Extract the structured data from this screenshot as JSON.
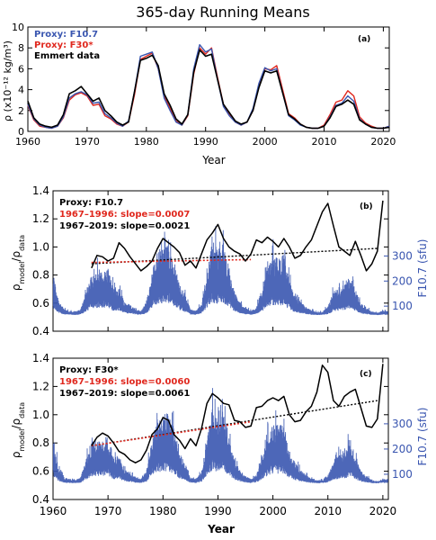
{
  "figure_title": "365-day Running Means",
  "colors": {
    "black": "#000000",
    "red": "#e0281e",
    "blue": "#3a56b0",
    "red_text": "#e0281e",
    "blue_axis": "#3a56b0"
  },
  "chart_data": [
    {
      "id": "a",
      "type": "line",
      "panel_label": "(a)",
      "xlabel": "Year",
      "ylabel": "ρ (x10⁻¹² kg/m³)",
      "xlim": [
        1960,
        2021
      ],
      "ylim": [
        0,
        10
      ],
      "x_ticks": [
        "1960",
        "1970",
        "1980",
        "1990",
        "2000",
        "2010",
        "2020"
      ],
      "y_ticks": [
        "0",
        "2",
        "4",
        "6",
        "8",
        "10"
      ],
      "legend": [
        "Proxy: F10.7",
        "Proxy: F30*",
        "Emmert data"
      ],
      "legend_placement": "top-left",
      "series": [
        {
          "name": "Emmert data",
          "color": "#000000",
          "x": [
            1960,
            1961,
            1962,
            1963,
            1964,
            1965,
            1966,
            1967,
            1968,
            1969,
            1970,
            1971,
            1972,
            1973,
            1974,
            1975,
            1976,
            1977,
            1978,
            1979,
            1980,
            1981,
            1982,
            1983,
            1984,
            1985,
            1986,
            1987,
            1988,
            1989,
            1990,
            1991,
            1992,
            1993,
            1994,
            1995,
            1996,
            1997,
            1998,
            1999,
            2000,
            2001,
            2002,
            2003,
            2004,
            2005,
            2006,
            2007,
            2008,
            2009,
            2010,
            2011,
            2012,
            2013,
            2014,
            2015,
            2016,
            2017,
            2018,
            2019,
            2020,
            2021
          ],
          "y": [
            2.9,
            1.3,
            0.7,
            0.5,
            0.4,
            0.6,
            1.6,
            3.6,
            3.9,
            4.3,
            3.6,
            2.9,
            3.2,
            2.0,
            1.5,
            0.9,
            0.6,
            0.9,
            3.8,
            6.8,
            7.0,
            7.3,
            6.3,
            3.6,
            2.5,
            1.2,
            0.7,
            1.6,
            5.7,
            7.8,
            7.2,
            7.4,
            5.0,
            2.6,
            1.8,
            1.0,
            0.7,
            0.9,
            2.0,
            4.2,
            5.8,
            5.6,
            5.8,
            3.7,
            1.6,
            1.2,
            0.7,
            0.4,
            0.3,
            0.3,
            0.5,
            1.3,
            2.4,
            2.6,
            3.0,
            2.6,
            1.1,
            0.7,
            0.4,
            0.3,
            0.3,
            0.4
          ]
        },
        {
          "name": "Proxy: F30*",
          "color": "#e0281e",
          "x": [
            1960,
            1961,
            1962,
            1963,
            1964,
            1965,
            1966,
            1967,
            1968,
            1969,
            1970,
            1971,
            1972,
            1973,
            1974,
            1975,
            1976,
            1977,
            1978,
            1979,
            1980,
            1981,
            1982,
            1983,
            1984,
            1985,
            1986,
            1987,
            1988,
            1989,
            1990,
            1991,
            1992,
            1993,
            1994,
            1995,
            1996,
            1997,
            1998,
            1999,
            2000,
            2001,
            2002,
            2003,
            2004,
            2005,
            2006,
            2007,
            2008,
            2009,
            2010,
            2011,
            2012,
            2013,
            2014,
            2015,
            2016,
            2017,
            2018,
            2019,
            2020,
            2021
          ],
          "y": [
            2.5,
            1.1,
            0.5,
            0.4,
            0.3,
            0.5,
            1.3,
            3.0,
            3.5,
            3.7,
            3.4,
            2.5,
            2.6,
            1.5,
            1.2,
            0.7,
            0.5,
            0.9,
            3.5,
            6.9,
            7.2,
            7.5,
            6.0,
            3.4,
            2.2,
            1.0,
            0.6,
            1.5,
            5.5,
            8.0,
            7.4,
            8.0,
            5.2,
            2.6,
            1.6,
            0.9,
            0.6,
            0.9,
            2.0,
            4.3,
            6.0,
            5.9,
            6.3,
            4.0,
            1.7,
            1.3,
            0.7,
            0.4,
            0.3,
            0.3,
            0.6,
            1.6,
            2.8,
            3.0,
            3.9,
            3.4,
            1.4,
            0.8,
            0.5,
            0.3,
            0.3,
            0.5
          ]
        },
        {
          "name": "Proxy: F10.7",
          "color": "#3a56b0",
          "x": [
            1960,
            1961,
            1962,
            1963,
            1964,
            1965,
            1966,
            1967,
            1968,
            1969,
            1970,
            1971,
            1972,
            1973,
            1974,
            1975,
            1976,
            1977,
            1978,
            1979,
            1980,
            1981,
            1982,
            1983,
            1984,
            1985,
            1986,
            1987,
            1988,
            1989,
            1990,
            1991,
            1992,
            1993,
            1994,
            1995,
            1996,
            1997,
            1998,
            1999,
            2000,
            2001,
            2002,
            2003,
            2004,
            2005,
            2006,
            2007,
            2008,
            2009,
            2010,
            2011,
            2012,
            2013,
            2014,
            2015,
            2016,
            2017,
            2018,
            2019,
            2020,
            2021
          ],
          "y": [
            2.6,
            1.2,
            0.6,
            0.4,
            0.3,
            0.5,
            1.4,
            3.2,
            3.6,
            3.8,
            3.5,
            2.7,
            2.8,
            1.7,
            1.3,
            0.8,
            0.5,
            1.0,
            3.8,
            7.2,
            7.4,
            7.6,
            6.0,
            3.2,
            2.0,
            0.9,
            0.6,
            1.6,
            6.0,
            8.3,
            7.6,
            7.9,
            5.0,
            2.4,
            1.5,
            0.9,
            0.6,
            0.9,
            2.2,
            4.6,
            6.1,
            5.8,
            6.0,
            3.7,
            1.5,
            1.1,
            0.6,
            0.4,
            0.3,
            0.3,
            0.5,
            1.4,
            2.5,
            2.7,
            3.4,
            2.9,
            1.2,
            0.7,
            0.4,
            0.3,
            0.3,
            0.5
          ]
        }
      ]
    },
    {
      "id": "b",
      "type": "line",
      "panel_label": "(b)",
      "ylabel_left": "ρmodel/ρdata",
      "ylabel_right": "F10.7 (sfu)",
      "xlim": [
        1960,
        2021
      ],
      "ylim": [
        0.4,
        1.4
      ],
      "y_ticks": [
        "0.4",
        "0.6",
        "0.8",
        "1.0",
        "1.2",
        "1.4"
      ],
      "right_ticks": [
        "100",
        "200",
        "300"
      ],
      "right_ylim": [
        0,
        560
      ],
      "legend": [
        "Proxy: F10.7",
        "1967–1996: slope=0.0007",
        "1967–2019: slope=0.0021"
      ],
      "legend_placement": "top-left",
      "ratio": {
        "x": [
          1967,
          1968,
          1969,
          1970,
          1971,
          1972,
          1973,
          1974,
          1975,
          1976,
          1977,
          1978,
          1979,
          1980,
          1981,
          1982,
          1983,
          1984,
          1985,
          1986,
          1987,
          1988,
          1989,
          1990,
          1991,
          1992,
          1993,
          1994,
          1995,
          1996,
          1997,
          1998,
          1999,
          2000,
          2001,
          2002,
          2003,
          2004,
          2005,
          2006,
          2007,
          2008,
          2009,
          2010,
          2011,
          2012,
          2013,
          2014,
          2015,
          2016,
          2017,
          2018,
          2019,
          2020
        ],
        "y": [
          0.85,
          0.94,
          0.93,
          0.9,
          0.92,
          1.03,
          0.99,
          0.93,
          0.88,
          0.83,
          0.86,
          0.9,
          0.99,
          1.06,
          1.03,
          1.0,
          0.96,
          0.87,
          0.9,
          0.85,
          0.95,
          1.05,
          1.1,
          1.16,
          1.06,
          1.0,
          0.97,
          0.95,
          0.9,
          0.95,
          1.05,
          1.03,
          1.07,
          1.04,
          1.0,
          1.06,
          1.0,
          0.92,
          0.94,
          1.0,
          1.05,
          1.15,
          1.25,
          1.31,
          1.15,
          1.0,
          0.97,
          0.94,
          1.04,
          0.94,
          0.83,
          0.88,
          0.97,
          1.33
        ]
      },
      "fit_1967_1996": {
        "x": [
          1967,
          1996
        ],
        "y": [
          0.89,
          0.91
        ]
      },
      "fit_1967_2019": {
        "x": [
          1967,
          2019
        ],
        "y": [
          0.88,
          0.99
        ]
      }
    },
    {
      "id": "c",
      "type": "line",
      "panel_label": "(c)",
      "xlabel": "Year",
      "ylabel_left": "ρmodel/ρdata",
      "ylabel_right": "F10.7 (sfu)",
      "xlim": [
        1960,
        2021
      ],
      "ylim": [
        0.4,
        1.4
      ],
      "x_ticks": [
        "1960",
        "1970",
        "1980",
        "1990",
        "2000",
        "2010",
        "2020"
      ],
      "y_ticks": [
        "0.4",
        "0.6",
        "0.8",
        "1.0",
        "1.2",
        "1.4"
      ],
      "right_ticks": [
        "100",
        "200",
        "300"
      ],
      "right_ylim": [
        0,
        560
      ],
      "legend": [
        "Proxy: F30*",
        "1967–1996: slope=0.0060",
        "1967–2019: slope=0.0061"
      ],
      "legend_placement": "top-left",
      "ratio": {
        "x": [
          1967,
          1968,
          1969,
          1970,
          1971,
          1972,
          1973,
          1974,
          1975,
          1976,
          1977,
          1978,
          1979,
          1980,
          1981,
          1982,
          1983,
          1984,
          1985,
          1986,
          1987,
          1988,
          1989,
          1990,
          1991,
          1992,
          1993,
          1994,
          1995,
          1996,
          1997,
          1998,
          1999,
          2000,
          2001,
          2002,
          2003,
          2004,
          2005,
          2006,
          2007,
          2008,
          2009,
          2010,
          2011,
          2012,
          2013,
          2014,
          2015,
          2016,
          2017,
          2018,
          2019,
          2020
        ],
        "y": [
          0.78,
          0.84,
          0.87,
          0.85,
          0.8,
          0.74,
          0.72,
          0.68,
          0.66,
          0.68,
          0.75,
          0.86,
          0.9,
          0.98,
          0.96,
          0.86,
          0.82,
          0.76,
          0.83,
          0.78,
          0.9,
          1.08,
          1.15,
          1.12,
          1.08,
          1.07,
          0.96,
          0.95,
          0.91,
          0.92,
          1.05,
          1.06,
          1.1,
          1.12,
          1.1,
          1.13,
          1.0,
          0.95,
          0.96,
          1.02,
          1.06,
          1.16,
          1.35,
          1.3,
          1.1,
          1.06,
          1.13,
          1.16,
          1.18,
          1.05,
          0.92,
          0.91,
          0.97,
          1.36
        ]
      },
      "fit_1967_1996": {
        "x": [
          1967,
          1996
        ],
        "y": [
          0.78,
          0.95
        ]
      },
      "fit_1967_2019": {
        "x": [
          1967,
          2019
        ],
        "y": [
          0.78,
          1.1
        ]
      }
    }
  ]
}
